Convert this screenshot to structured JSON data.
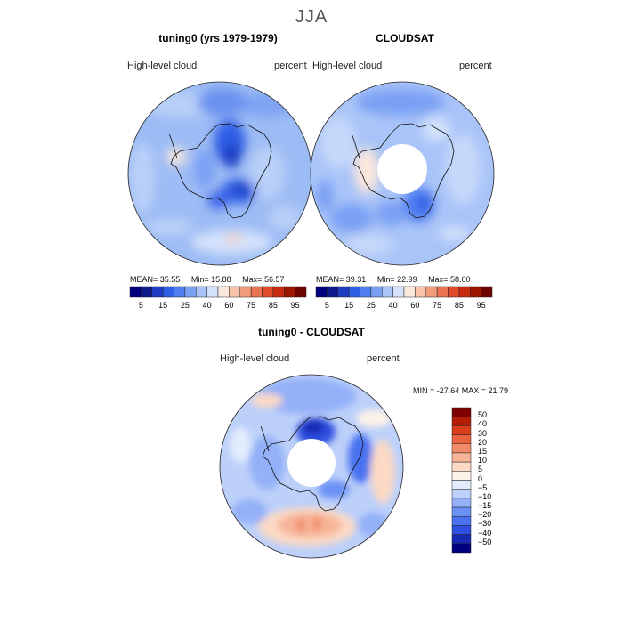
{
  "main_title": "JJA",
  "panels": {
    "left": {
      "title": "tuning0 (yrs 1979-1979)",
      "variable": "High-level cloud",
      "units": "percent",
      "stats": {
        "mean_label": "MEAN=",
        "mean": "35.55",
        "min_label": "Min=",
        "min": "15.88",
        "max_label": "Max=",
        "max": "56.57"
      }
    },
    "right": {
      "title": "CLOUDSAT",
      "variable": "High-level cloud",
      "units": "percent",
      "stats": {
        "mean_label": "MEAN=",
        "mean": "39.31",
        "min_label": "Min=",
        "min": "22.99",
        "max_label": "Max=",
        "max": "58.60"
      }
    },
    "diff": {
      "title": "tuning0 - CLOUDSAT",
      "variable": "High-level cloud",
      "units": "percent",
      "minmax": "MIN = -27.64  MAX =  21.79"
    }
  },
  "colorbars": {
    "abs_colors": [
      "#00007f",
      "#0d1a8c",
      "#1e3cc4",
      "#2f5fe6",
      "#4f7ef0",
      "#7aa0f4",
      "#a9c4f8",
      "#d4e2fb",
      "#fce8dc",
      "#f8c3a9",
      "#f29c7c",
      "#ec7352",
      "#e14a28",
      "#c82a10",
      "#9c1600",
      "#6e0400"
    ],
    "abs_labels": [
      "5",
      "15",
      "25",
      "40",
      "60",
      "75",
      "85",
      "95"
    ],
    "diff_colors": [
      "#00007f",
      "#1729b4",
      "#2f4fe0",
      "#4a72f0",
      "#6b90f4",
      "#93b0f8",
      "#bcd0fa",
      "#e3ecfd",
      "#fdf2e8",
      "#fbd9c4",
      "#f7b497",
      "#f28b69",
      "#ea6240",
      "#d93d1b",
      "#b31d06",
      "#7f0000"
    ],
    "diff_labels": [
      "50",
      "40",
      "30",
      "20",
      "15",
      "10",
      "5",
      "0",
      "−5",
      "−10",
      "−15",
      "−20",
      "−30",
      "−40",
      "−50"
    ]
  },
  "chart_data": [
    {
      "type": "heatmap",
      "projection": "south-polar-stereographic",
      "title": "tuning0 (yrs 1979-1979)",
      "variable": "High-level cloud",
      "units": "percent",
      "season": "JJA",
      "mean": 35.55,
      "min": 15.88,
      "max": 56.57,
      "levels": [
        5,
        15,
        25,
        40,
        60,
        75,
        85,
        95
      ]
    },
    {
      "type": "heatmap",
      "projection": "south-polar-stereographic",
      "title": "CLOUDSAT",
      "variable": "High-level cloud",
      "units": "percent",
      "season": "JJA",
      "mean": 39.31,
      "min": 22.99,
      "max": 58.6,
      "levels": [
        5,
        15,
        25,
        40,
        60,
        75,
        85,
        95
      ]
    },
    {
      "type": "heatmap",
      "projection": "south-polar-stereographic",
      "title": "tuning0 - CLOUDSAT",
      "variable": "High-level cloud",
      "units": "percent",
      "season": "JJA",
      "min": -27.64,
      "max": 21.79,
      "levels": [
        -50,
        -40,
        -30,
        -20,
        -15,
        -10,
        -5,
        0,
        5,
        10,
        15,
        20,
        30,
        40,
        50
      ]
    }
  ]
}
